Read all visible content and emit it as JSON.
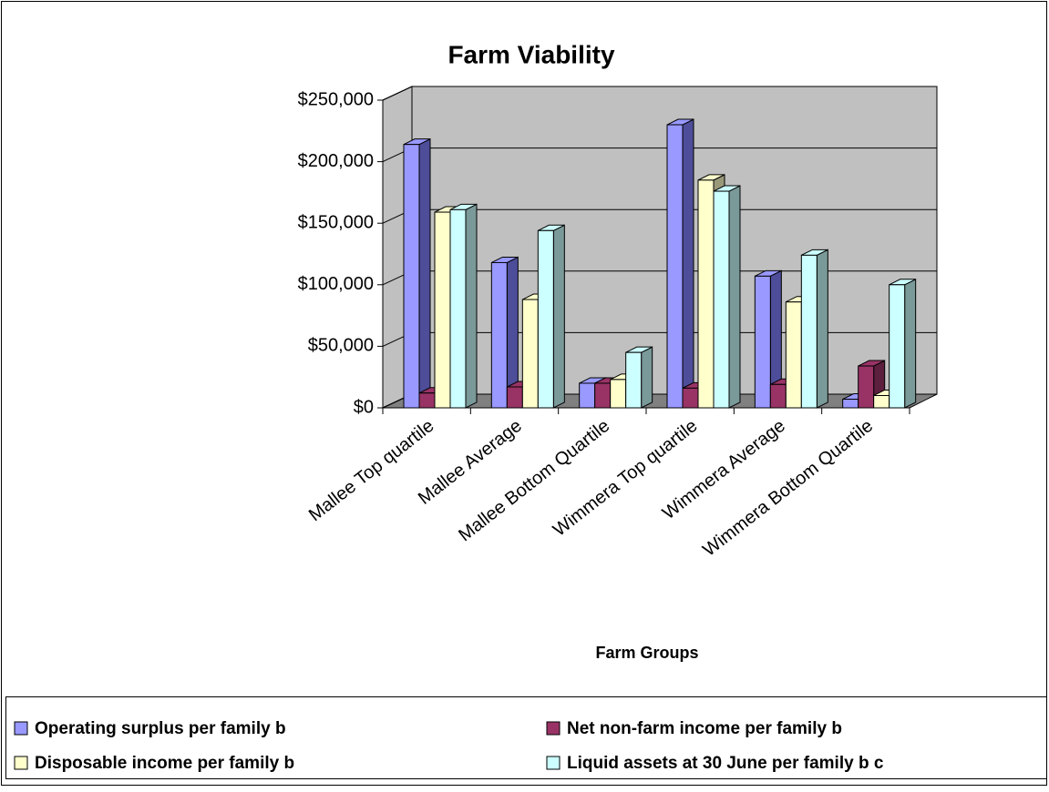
{
  "chart_data": {
    "type": "bar3d",
    "title": "Farm Viability",
    "x_label": "Farm Groups",
    "categories": [
      "Mallee Top quartile",
      "Mallee Average",
      "Mallee Bottom Quartile",
      "Wimmera Top quartile",
      "Wimmera Average",
      "Wimmera Bottom Quartile"
    ],
    "series": [
      {
        "name": "Operating surplus per family b",
        "color": "#9999ff",
        "side": "#4d4d99",
        "values": [
          214000,
          118000,
          20000,
          230000,
          107000,
          7000
        ]
      },
      {
        "name": "Net non-farm income per family b",
        "color": "#993366",
        "side": "#5c1f3d",
        "values": [
          12000,
          17000,
          20000,
          16000,
          19000,
          34000
        ]
      },
      {
        "name": "Disposable income per family b",
        "color": "#ffffcc",
        "side": "#99997a",
        "values": [
          159000,
          88000,
          23000,
          185000,
          86000,
          10000
        ]
      },
      {
        "name": "Liquid assets at 30 June per family b c",
        "color": "#ccffff",
        "side": "#7a9999",
        "values": [
          161000,
          144000,
          45000,
          176000,
          124000,
          100000
        ]
      }
    ],
    "ylim": [
      0,
      250000
    ],
    "yticks": [
      {
        "value": 0,
        "label": "$0"
      },
      {
        "value": 50000,
        "label": "$50,000"
      },
      {
        "value": 100000,
        "label": "$100,000"
      },
      {
        "value": 150000,
        "label": "$150,000"
      },
      {
        "value": 200000,
        "label": "$200,000"
      },
      {
        "value": 250000,
        "label": "$250,000"
      }
    ],
    "grid": true,
    "legend": "bottom"
  }
}
